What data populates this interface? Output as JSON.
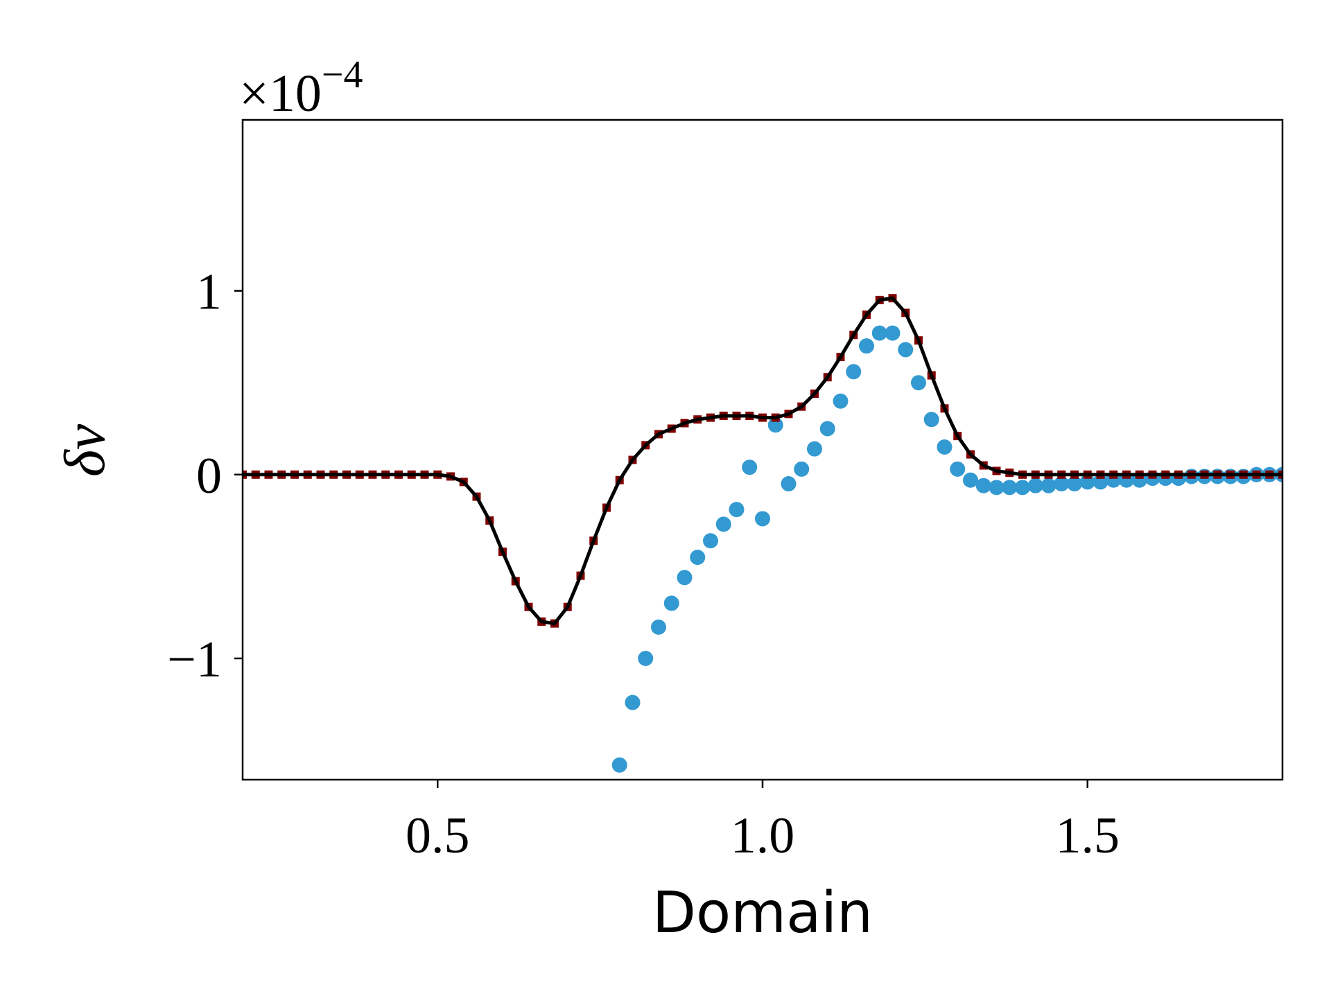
{
  "chart_data": {
    "type": "line",
    "xlabel": "Domain",
    "ylabel": "δv",
    "y_offset_base": "×10",
    "y_offset_exponent": "−4",
    "xlim": [
      0.2,
      1.8
    ],
    "ylim": [
      -1.66,
      1.93
    ],
    "xticks": [
      0.5,
      {
        "value": 1,
        "label": "1.0"
      },
      1.5
    ],
    "yticks": [
      {
        "value": -1,
        "label": "−1"
      },
      0,
      1
    ],
    "series": [
      {
        "marker": "circle",
        "color": "#3399d1",
        "x": [
          0.78,
          0.8,
          0.82,
          0.84,
          0.86,
          0.88,
          0.9,
          0.92,
          0.94,
          0.96,
          0.98,
          1.0,
          1.02,
          1.04,
          1.06,
          1.08,
          1.1,
          1.12,
          1.14,
          1.16,
          1.18,
          1.2,
          1.22,
          1.24,
          1.26,
          1.28,
          1.3,
          1.32,
          1.34,
          1.36,
          1.38,
          1.4,
          1.42,
          1.44,
          1.46,
          1.48,
          1.5,
          1.52,
          1.54,
          1.56,
          1.58,
          1.6,
          1.62,
          1.64,
          1.66,
          1.68,
          1.7,
          1.72,
          1.74,
          1.76,
          1.78,
          1.8
        ],
        "values": [
          -1.58,
          -1.24,
          -1.0,
          -0.83,
          -0.7,
          -0.56,
          -0.45,
          -0.36,
          -0.27,
          -0.19,
          0.04,
          -0.24,
          0.27,
          -0.05,
          0.03,
          0.14,
          0.25,
          0.4,
          0.56,
          0.7,
          0.77,
          0.77,
          0.68,
          0.5,
          0.3,
          0.15,
          0.03,
          -0.03,
          -0.06,
          -0.07,
          -0.07,
          -0.07,
          -0.06,
          -0.06,
          -0.05,
          -0.05,
          -0.04,
          -0.04,
          -0.03,
          -0.03,
          -0.03,
          -0.02,
          -0.02,
          -0.02,
          -0.01,
          -0.01,
          -0.01,
          -0.01,
          -0.01,
          0,
          0,
          0
        ]
      },
      {
        "marker": "square",
        "color": "#7f0000",
        "x": [
          0.2,
          0.22,
          0.24,
          0.26,
          0.28,
          0.3,
          0.32,
          0.34,
          0.36,
          0.38,
          0.4,
          0.42,
          0.44,
          0.46,
          0.48,
          0.5,
          0.52,
          0.54,
          0.56,
          0.58,
          0.6,
          0.62,
          0.64,
          0.66,
          0.68,
          0.7,
          0.72,
          0.74,
          0.76,
          0.78,
          0.8,
          0.82,
          0.84,
          0.86,
          0.88,
          0.9,
          0.92,
          0.94,
          0.96,
          0.98,
          1.0,
          1.02,
          1.04,
          1.06,
          1.08,
          1.1,
          1.12,
          1.14,
          1.16,
          1.18,
          1.2,
          1.22,
          1.24,
          1.26,
          1.28,
          1.3,
          1.32,
          1.34,
          1.36,
          1.38,
          1.4,
          1.42,
          1.44,
          1.46,
          1.48,
          1.5,
          1.52,
          1.54,
          1.56,
          1.58,
          1.6,
          1.62,
          1.64,
          1.66,
          1.68,
          1.7,
          1.72,
          1.74,
          1.76,
          1.78,
          1.8
        ],
        "values": [
          0,
          0,
          0,
          0,
          0,
          0,
          0,
          0,
          0,
          0,
          0,
          0,
          0,
          0,
          0,
          0,
          -0.01,
          -0.04,
          -0.12,
          -0.25,
          -0.42,
          -0.58,
          -0.72,
          -0.8,
          -0.81,
          -0.72,
          -0.55,
          -0.36,
          -0.18,
          -0.03,
          0.08,
          0.16,
          0.22,
          0.25,
          0.28,
          0.3,
          0.31,
          0.32,
          0.32,
          0.32,
          0.31,
          0.31,
          0.33,
          0.37,
          0.44,
          0.53,
          0.64,
          0.76,
          0.87,
          0.95,
          0.96,
          0.88,
          0.73,
          0.54,
          0.36,
          0.21,
          0.11,
          0.05,
          0.02,
          0.01,
          0,
          0,
          0,
          0,
          0,
          0,
          0,
          0,
          0,
          0,
          0,
          0,
          0,
          0,
          0,
          0,
          0,
          0,
          0,
          0,
          0
        ]
      },
      {
        "marker": "none",
        "color": "#000000",
        "x": [
          0.2,
          0.22,
          0.24,
          0.26,
          0.28,
          0.3,
          0.32,
          0.34,
          0.36,
          0.38,
          0.4,
          0.42,
          0.44,
          0.46,
          0.48,
          0.5,
          0.52,
          0.54,
          0.56,
          0.58,
          0.6,
          0.62,
          0.64,
          0.66,
          0.68,
          0.7,
          0.72,
          0.74,
          0.76,
          0.78,
          0.8,
          0.82,
          0.84,
          0.86,
          0.88,
          0.9,
          0.92,
          0.94,
          0.96,
          0.98,
          1.0,
          1.02,
          1.04,
          1.06,
          1.08,
          1.1,
          1.12,
          1.14,
          1.16,
          1.18,
          1.2,
          1.22,
          1.24,
          1.26,
          1.28,
          1.3,
          1.32,
          1.34,
          1.36,
          1.38,
          1.4,
          1.42,
          1.44,
          1.46,
          1.48,
          1.5,
          1.52,
          1.54,
          1.56,
          1.58,
          1.6,
          1.62,
          1.64,
          1.66,
          1.68,
          1.7,
          1.72,
          1.74,
          1.76,
          1.78,
          1.8
        ],
        "values": [
          0,
          0,
          0,
          0,
          0,
          0,
          0,
          0,
          0,
          0,
          0,
          0,
          0,
          0,
          0,
          0,
          -0.01,
          -0.04,
          -0.12,
          -0.25,
          -0.42,
          -0.58,
          -0.72,
          -0.8,
          -0.81,
          -0.72,
          -0.55,
          -0.36,
          -0.18,
          -0.03,
          0.08,
          0.16,
          0.22,
          0.25,
          0.28,
          0.3,
          0.31,
          0.32,
          0.32,
          0.32,
          0.31,
          0.31,
          0.33,
          0.37,
          0.44,
          0.53,
          0.64,
          0.76,
          0.87,
          0.95,
          0.96,
          0.88,
          0.73,
          0.54,
          0.36,
          0.21,
          0.11,
          0.05,
          0.02,
          0.01,
          0,
          0,
          0,
          0,
          0,
          0,
          0,
          0,
          0,
          0,
          0,
          0,
          0,
          0,
          0,
          0,
          0,
          0,
          0,
          0,
          0
        ]
      }
    ]
  }
}
